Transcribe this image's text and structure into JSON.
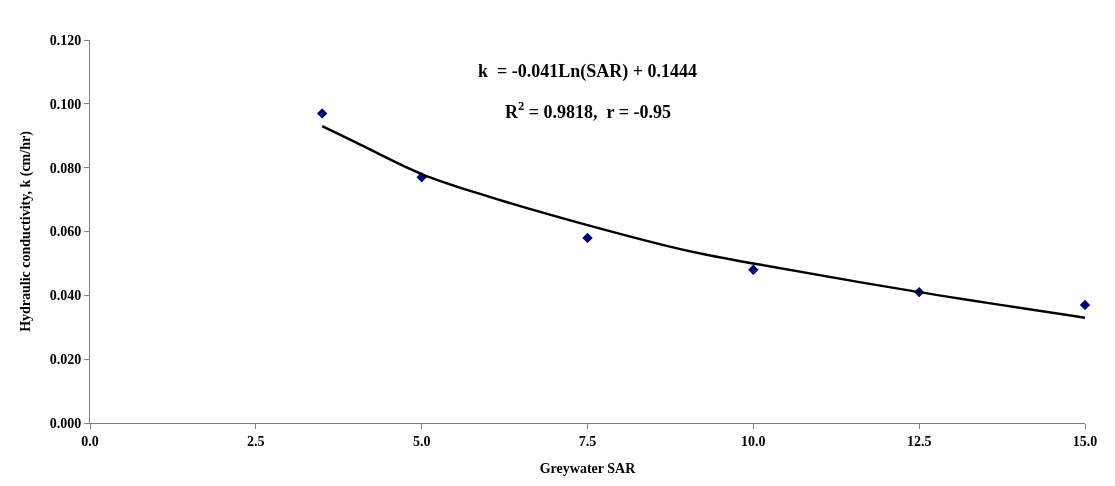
{
  "chart_data": {
    "type": "scatter",
    "xlabel": "Greywater SAR",
    "ylabel": "Hydraulic conductivity, k (cm/hr)",
    "x": [
      3.5,
      5,
      7.5,
      10,
      12.5,
      15
    ],
    "series": [
      {
        "color": "#000080",
        "marker": "diamond",
        "values": [
          0.097,
          0.077,
          0.058,
          0.048,
          0.041,
          0.037
        ]
      },
      {
        "type": "line",
        "color": "#000000",
        "marker": "none",
        "x": [
          3.5,
          4,
          5,
          6,
          7.5,
          9,
          10,
          12.5,
          15
        ],
        "values": [
          0.093,
          0.088,
          0.078,
          0.071,
          0.062,
          0.054,
          0.05,
          0.041,
          0.033
        ]
      }
    ],
    "annotations": [
      "k  = -0.041Ln(SAR) + 0.1444",
      "R$^{2}$ = 0.9818,  r = -0.95"
    ],
    "xlim": [
      0,
      15
    ],
    "xticks": [
      {
        "value": 0,
        "label": "0.0"
      },
      {
        "value": 2.5,
        "label": "2.5"
      },
      {
        "value": 5,
        "label": "5.0"
      },
      {
        "value": 7.5,
        "label": "7.5"
      },
      {
        "value": 10,
        "label": "10.0"
      },
      {
        "value": 12.5,
        "label": "12.5"
      },
      {
        "value": 15,
        "label": "15.0"
      }
    ],
    "ylim": [
      0,
      0.12
    ],
    "yticks": [
      {
        "value": 0,
        "label": "0.000"
      },
      {
        "value": 0.02,
        "label": "0.020"
      },
      {
        "value": 0.04,
        "label": "0.040"
      },
      {
        "value": 0.06,
        "label": "0.060"
      },
      {
        "value": 0.08,
        "label": "0.080"
      },
      {
        "value": 0.1,
        "label": "0.100"
      },
      {
        "value": 0.12,
        "label": "0.120"
      }
    ]
  }
}
